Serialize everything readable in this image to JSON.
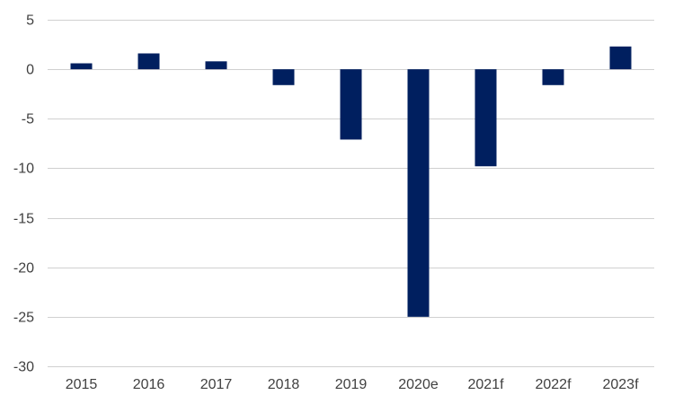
{
  "chart_data": {
    "type": "bar",
    "title": "",
    "xlabel": "",
    "ylabel": "",
    "categories": [
      "2015",
      "2016",
      "2017",
      "2018",
      "2019",
      "2020e",
      "2021f",
      "2022f",
      "2023f"
    ],
    "values": [
      0.6,
      1.6,
      0.8,
      -1.6,
      -7.1,
      -25.0,
      -9.8,
      -1.6,
      2.3
    ],
    "ylim": [
      -30,
      5
    ],
    "yticks": [
      5,
      0,
      -5,
      -10,
      -15,
      -20,
      -25,
      -30
    ],
    "grid": true,
    "legend": "none",
    "colors": {
      "bar": "#001f5f",
      "grid": "#d0d0d0",
      "text": "#404040"
    }
  }
}
